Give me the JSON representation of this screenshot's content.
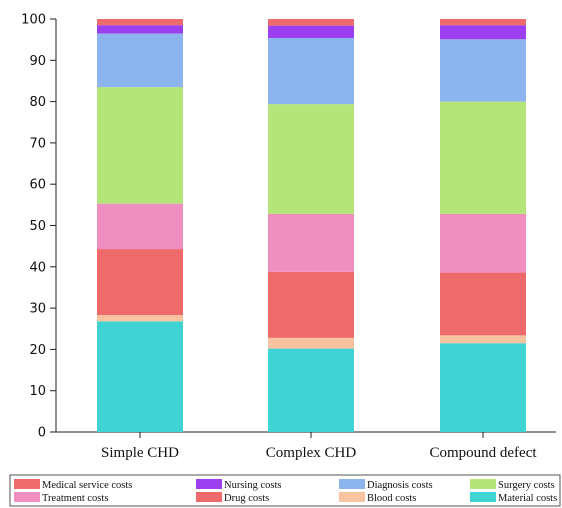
{
  "chart_data": {
    "type": "bar",
    "stacked": true,
    "title": "",
    "xlabel": "",
    "ylabel": "",
    "ylim": [
      0,
      100
    ],
    "yticks": [
      0,
      10,
      20,
      30,
      40,
      50,
      60,
      70,
      80,
      90,
      100
    ],
    "grid": false,
    "legend_position": "bottom",
    "categories": [
      "Simple CHD",
      "Complex CHD",
      "Compound defect"
    ],
    "series": [
      {
        "name": "Material costs",
        "color": "#3fd3d3",
        "values": [
          26.8,
          20.2,
          21.5
        ]
      },
      {
        "name": "Blood costs",
        "color": "#f8c4a0",
        "values": [
          1.5,
          2.6,
          1.9
        ]
      },
      {
        "name": "Drug costs",
        "color": "#ef6b6b",
        "values": [
          16.0,
          16.0,
          15.2
        ]
      },
      {
        "name": "Treatment costs",
        "color": "#ef8fbf",
        "values": [
          11.0,
          14.0,
          14.2
        ]
      },
      {
        "name": "Surgery costs",
        "color": "#b4e57a",
        "values": [
          28.2,
          26.6,
          27.2
        ]
      },
      {
        "name": "Diagnosis costs",
        "color": "#8cb4ee",
        "values": [
          13.0,
          16.0,
          15.1
        ]
      },
      {
        "name": "Nursing costs",
        "color": "#9b3ff0",
        "values": [
          2.0,
          3.0,
          3.4
        ]
      },
      {
        "name": "Medical service costs",
        "color": "#ef6b6b",
        "values": [
          1.5,
          1.6,
          1.5
        ]
      }
    ],
    "legend_order": [
      "Medical service costs",
      "Nursing costs",
      "Diagnosis costs",
      "Surgery costs",
      "Treatment costs",
      "Drug costs",
      "Blood costs",
      "Material costs"
    ]
  }
}
